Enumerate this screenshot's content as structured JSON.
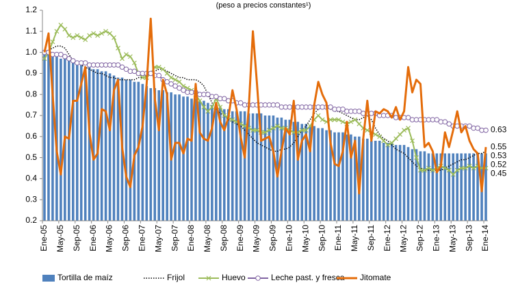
{
  "chart_data": {
    "type": "line",
    "subtitle": "(peso a precios constantes¹)",
    "categories": [
      "Ene-05",
      null,
      null,
      null,
      "May-05",
      null,
      null,
      null,
      "Sep-05",
      null,
      null,
      null,
      "Ene-06",
      null,
      null,
      null,
      "May-06",
      null,
      null,
      null,
      "Sep-06",
      null,
      null,
      null,
      "Ene-07",
      null,
      null,
      null,
      "May-07",
      null,
      null,
      null,
      "Sep-07",
      null,
      null,
      null,
      "Ene-08",
      null,
      null,
      null,
      "May-08",
      null,
      null,
      null,
      "Sep-08",
      null,
      null,
      null,
      "Ene-09",
      null,
      null,
      null,
      "May-09",
      null,
      null,
      null,
      "Sep-09",
      null,
      null,
      null,
      "Ene-10",
      null,
      null,
      null,
      "May-10",
      null,
      null,
      null,
      "Sep-10",
      null,
      null,
      null,
      "Ene-11",
      null,
      null,
      null,
      "May-11",
      null,
      null,
      null,
      "Sep-11",
      null,
      null,
      null,
      "Ene-12",
      null,
      null,
      null,
      "May-12",
      null,
      null,
      null,
      "Sep-12",
      null,
      null,
      null,
      "Ene-13",
      null,
      null,
      null,
      "May-13",
      null,
      null,
      null,
      "Sep-13",
      null,
      null,
      null,
      "Ene-14"
    ],
    "ylim": [
      0.2,
      1.2
    ],
    "yticks": [
      0.2,
      0.3,
      0.4,
      0.5,
      0.6,
      0.7,
      0.8,
      0.9,
      {
        "value": 1,
        "label": "1.0"
      },
      1.1,
      1.2
    ],
    "series": [
      {
        "name": "Tortilla de maíz",
        "type": "bar",
        "color": "#4f81bd",
        "end_label": true,
        "values": [
          1.0,
          0.99,
          0.99,
          0.98,
          0.97,
          0.97,
          0.96,
          0.95,
          0.95,
          0.94,
          0.93,
          0.93,
          0.92,
          0.92,
          0.91,
          0.91,
          0.9,
          0.89,
          0.88,
          0.88,
          0.87,
          0.87,
          0.86,
          0.86,
          0.85,
          0.84,
          0.83,
          0.83,
          0.82,
          0.82,
          0.81,
          0.81,
          0.8,
          0.8,
          0.79,
          0.79,
          0.78,
          0.78,
          0.77,
          0.77,
          0.76,
          0.75,
          0.74,
          0.74,
          0.73,
          0.73,
          0.72,
          0.72,
          0.72,
          0.72,
          0.71,
          0.71,
          0.71,
          0.71,
          0.7,
          0.7,
          0.7,
          0.69,
          0.69,
          0.68,
          0.68,
          0.67,
          0.67,
          0.66,
          0.66,
          0.65,
          0.65,
          0.64,
          0.64,
          0.63,
          0.63,
          0.62,
          0.62,
          0.62,
          0.61,
          0.61,
          0.6,
          0.6,
          0.59,
          0.59,
          0.58,
          0.58,
          0.58,
          0.57,
          0.57,
          0.57,
          0.56,
          0.56,
          0.56,
          0.55,
          0.54,
          0.54,
          0.53,
          0.53,
          0.52,
          0.52,
          0.52,
          0.52,
          0.52,
          0.52,
          0.52,
          0.52,
          0.52,
          0.52,
          0.52,
          0.52,
          0.52,
          0.52,
          0.52
        ]
      },
      {
        "name": "Frijol",
        "type": "line",
        "color": "#000000",
        "dash": "dotted",
        "width": 1.5,
        "end_label": true,
        "values": [
          1.0,
          1.01,
          1.02,
          1.03,
          1.03,
          1.02,
          0.99,
          0.96,
          0.95,
          0.94,
          0.93,
          0.92,
          0.91,
          0.9,
          0.9,
          0.89,
          0.88,
          0.88,
          0.87,
          0.87,
          0.87,
          0.87,
          0.87,
          0.88,
          0.88,
          0.89,
          0.9,
          0.91,
          0.92,
          0.92,
          0.91,
          0.9,
          0.89,
          0.88,
          0.88,
          0.87,
          0.87,
          0.87,
          0.86,
          0.84,
          0.8,
          0.76,
          0.73,
          0.71,
          0.7,
          0.68,
          0.67,
          0.66,
          0.65,
          0.63,
          0.61,
          0.59,
          0.57,
          0.56,
          0.55,
          0.54,
          0.53,
          0.53,
          0.54,
          0.54,
          0.55,
          0.57,
          0.6,
          0.63,
          0.65,
          0.68,
          0.71,
          0.73,
          0.74,
          0.74,
          0.73,
          0.72,
          0.72,
          0.71,
          0.7,
          0.69,
          0.68,
          0.68,
          0.69,
          0.7,
          0.68,
          0.64,
          0.61,
          0.59,
          0.58,
          0.56,
          0.54,
          0.53,
          0.52,
          0.5,
          0.48,
          0.46,
          0.45,
          0.44,
          0.44,
          0.44,
          0.44,
          0.44,
          0.45,
          0.46,
          0.47,
          0.48,
          0.49,
          0.49,
          0.5,
          0.51,
          0.52,
          0.52,
          0.53
        ]
      },
      {
        "name": "Huevo",
        "type": "line",
        "color": "#9bbb59",
        "marker": "x",
        "width": 2,
        "end_label": true,
        "values": [
          0.97,
          1.0,
          1.05,
          1.1,
          1.13,
          1.11,
          1.08,
          1.07,
          1.08,
          1.07,
          1.06,
          1.08,
          1.09,
          1.08,
          1.09,
          1.1,
          1.09,
          1.07,
          1.02,
          0.97,
          0.99,
          0.98,
          0.95,
          0.9,
          0.88,
          0.88,
          0.9,
          0.93,
          0.93,
          0.92,
          0.9,
          0.88,
          0.87,
          0.86,
          0.84,
          0.83,
          0.82,
          0.8,
          0.77,
          0.74,
          0.72,
          0.74,
          0.78,
          0.74,
          0.7,
          0.69,
          0.68,
          0.67,
          0.66,
          0.65,
          0.64,
          0.63,
          0.63,
          0.62,
          0.62,
          0.63,
          0.64,
          0.65,
          0.64,
          0.64,
          0.63,
          0.62,
          0.62,
          0.63,
          0.63,
          0.65,
          0.68,
          0.7,
          0.68,
          0.67,
          0.68,
          0.68,
          0.68,
          0.67,
          0.66,
          0.67,
          0.68,
          0.66,
          0.64,
          0.63,
          0.62,
          0.61,
          0.6,
          0.58,
          0.56,
          0.57,
          0.59,
          0.61,
          0.63,
          0.64,
          0.58,
          0.5,
          0.44,
          0.44,
          0.45,
          0.44,
          0.45,
          0.46,
          0.45,
          0.44,
          0.42,
          0.44,
          0.45,
          0.45,
          0.46,
          0.45,
          0.46,
          0.45,
          0.45
        ]
      },
      {
        "name": "Leche past. y fresca",
        "type": "line",
        "color": "#8064a2",
        "marker": "circle",
        "width": 2,
        "end_label": true,
        "values": [
          1.0,
          1.0,
          0.99,
          0.99,
          0.99,
          0.98,
          0.97,
          0.96,
          0.95,
          0.95,
          0.95,
          0.94,
          0.94,
          0.94,
          0.94,
          0.94,
          0.94,
          0.94,
          0.94,
          0.93,
          0.92,
          0.91,
          0.91,
          0.9,
          0.9,
          0.9,
          0.9,
          0.89,
          0.89,
          0.87,
          0.86,
          0.85,
          0.84,
          0.83,
          0.82,
          0.81,
          0.81,
          0.81,
          0.8,
          0.8,
          0.8,
          0.79,
          0.79,
          0.78,
          0.78,
          0.77,
          0.77,
          0.76,
          0.76,
          0.75,
          0.75,
          0.75,
          0.75,
          0.75,
          0.75,
          0.75,
          0.75,
          0.75,
          0.74,
          0.74,
          0.74,
          0.74,
          0.74,
          0.74,
          0.74,
          0.74,
          0.74,
          0.74,
          0.74,
          0.74,
          0.74,
          0.73,
          0.73,
          0.73,
          0.72,
          0.72,
          0.72,
          0.72,
          0.71,
          0.71,
          0.71,
          0.71,
          0.7,
          0.7,
          0.7,
          0.7,
          0.69,
          0.69,
          0.69,
          0.69,
          0.68,
          0.68,
          0.68,
          0.68,
          0.68,
          0.68,
          0.68,
          0.67,
          0.67,
          0.66,
          0.65,
          0.65,
          0.65,
          0.65,
          0.65,
          0.64,
          0.64,
          0.63,
          0.63
        ]
      },
      {
        "name": "Jitomate",
        "type": "line",
        "color": "#e46c0a",
        "width": 3,
        "end_label": true,
        "values": [
          1.0,
          1.09,
          0.8,
          0.53,
          0.42,
          0.6,
          0.59,
          0.77,
          0.77,
          0.85,
          0.93,
          0.62,
          0.49,
          0.52,
          0.73,
          0.72,
          0.63,
          0.82,
          0.87,
          0.55,
          0.41,
          0.36,
          0.51,
          0.55,
          0.65,
          0.85,
          1.16,
          0.78,
          0.63,
          0.87,
          0.8,
          0.49,
          0.57,
          0.57,
          0.52,
          0.59,
          0.58,
          0.85,
          0.62,
          0.59,
          0.58,
          0.64,
          0.76,
          0.67,
          0.63,
          0.69,
          0.82,
          0.73,
          0.6,
          0.5,
          0.74,
          1.1,
          0.85,
          0.58,
          0.59,
          0.6,
          0.53,
          0.41,
          0.53,
          0.64,
          0.61,
          0.77,
          0.49,
          0.58,
          0.61,
          0.53,
          0.75,
          0.86,
          0.8,
          0.76,
          0.57,
          0.47,
          0.46,
          0.53,
          0.67,
          0.5,
          0.58,
          0.33,
          0.59,
          0.77,
          0.58,
          0.72,
          0.71,
          0.73,
          0.72,
          0.69,
          0.74,
          0.68,
          0.72,
          0.93,
          0.81,
          0.87,
          0.85,
          0.55,
          0.57,
          0.53,
          0.43,
          0.46,
          0.62,
          0.55,
          0.63,
          0.72,
          0.62,
          0.65,
          0.58,
          0.54,
          0.52,
          0.34,
          0.55
        ]
      }
    ]
  }
}
